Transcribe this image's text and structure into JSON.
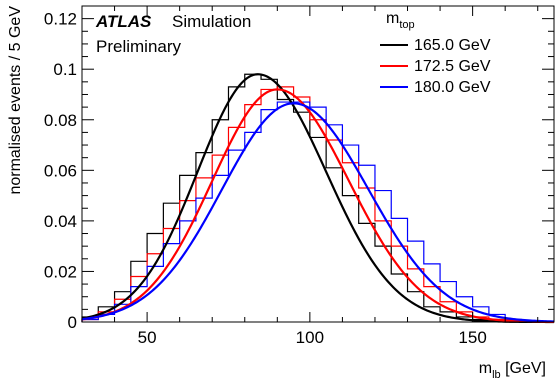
{
  "chart_data": {
    "type": "line",
    "experiment_label": "ATLAS",
    "status_label": "Simulation",
    "status_label_2": "Preliminary",
    "xlabel": {
      "main": "m",
      "sub": "lb",
      "unit": " [GeV]"
    },
    "ylabel": "normalised events / 5 GeV",
    "xlim": [
      30,
      175
    ],
    "ylim": [
      0,
      0.125
    ],
    "x_ticks": [
      50,
      100,
      150
    ],
    "y_ticks": [
      0,
      0.02,
      0.04,
      0.06,
      0.08,
      0.1,
      0.12
    ],
    "y_tick_labels": [
      "0",
      "0.02",
      "0.04",
      "0.06",
      "0.08",
      "0.1",
      "0.12"
    ],
    "legend": {
      "title_main": "m",
      "title_sub": "top",
      "placement": "top-right"
    },
    "bin_width": 5,
    "series": [
      {
        "name": "165.0 GeV",
        "color": "#000000",
        "fit": {
          "peak_x": 84,
          "peak_y": 0.098,
          "sigma_left": 18.5,
          "sigma_right": 21
        },
        "bin_edges": [
          30,
          35,
          40,
          45,
          50,
          55,
          60,
          65,
          70,
          75,
          80,
          85,
          90,
          95,
          100,
          105,
          110,
          115,
          120,
          125,
          130,
          135,
          140,
          145,
          150,
          155,
          160,
          165,
          170,
          175
        ],
        "hist": [
          0.002,
          0.006,
          0.012,
          0.024,
          0.035,
          0.047,
          0.058,
          0.067,
          0.08,
          0.093,
          0.098,
          0.096,
          0.088,
          0.083,
          0.073,
          0.061,
          0.05,
          0.039,
          0.03,
          0.019,
          0.012,
          0.006,
          0.004,
          0.002,
          0.001,
          0.001,
          0.0,
          0.0,
          0.0
        ]
      },
      {
        "name": "172.5 GeV",
        "color": "#ff0000",
        "fit": {
          "peak_x": 90,
          "peak_y": 0.092,
          "sigma_left": 20,
          "sigma_right": 22
        },
        "bin_edges": [
          30,
          35,
          40,
          45,
          50,
          55,
          60,
          65,
          70,
          75,
          80,
          85,
          90,
          95,
          100,
          105,
          110,
          115,
          120,
          125,
          130,
          135,
          140,
          145,
          150,
          155,
          160,
          165,
          170,
          175
        ],
        "hist": [
          0.001,
          0.004,
          0.009,
          0.018,
          0.027,
          0.037,
          0.048,
          0.057,
          0.066,
          0.077,
          0.086,
          0.092,
          0.093,
          0.089,
          0.08,
          0.072,
          0.063,
          0.053,
          0.04,
          0.03,
          0.021,
          0.014,
          0.008,
          0.004,
          0.002,
          0.001,
          0.0,
          0.0,
          0.0
        ]
      },
      {
        "name": "180.0 GeV",
        "color": "#0000ff",
        "fit": {
          "peak_x": 95,
          "peak_y": 0.0865,
          "sigma_left": 22,
          "sigma_right": 23
        },
        "bin_edges": [
          30,
          35,
          40,
          45,
          50,
          55,
          60,
          65,
          70,
          75,
          80,
          85,
          90,
          95,
          100,
          105,
          110,
          115,
          120,
          125,
          130,
          135,
          140,
          145,
          150,
          155,
          160,
          165,
          170,
          175
        ],
        "hist": [
          0.001,
          0.003,
          0.007,
          0.014,
          0.022,
          0.031,
          0.04,
          0.049,
          0.058,
          0.068,
          0.075,
          0.084,
          0.087,
          0.087,
          0.085,
          0.078,
          0.07,
          0.062,
          0.052,
          0.041,
          0.032,
          0.023,
          0.016,
          0.01,
          0.006,
          0.003,
          0.001,
          0.0,
          0.0
        ]
      }
    ]
  }
}
